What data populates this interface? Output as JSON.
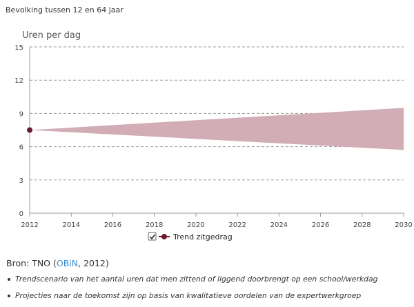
{
  "header": {
    "subtitle": "Bevolking tussen 12 en 64 jaar"
  },
  "chart_data": {
    "type": "area",
    "ylabel": "Uren per dag",
    "xlim": [
      2012,
      2030
    ],
    "ylim": [
      0,
      15
    ],
    "xticks": [
      2012,
      2014,
      2016,
      2018,
      2020,
      2022,
      2024,
      2026,
      2028,
      2030
    ],
    "yticks": [
      0,
      3,
      6,
      9,
      12,
      15
    ],
    "grid": true,
    "series": [
      {
        "name": "Trend zitgedrag",
        "start": {
          "x": 2012,
          "y": 7.5
        },
        "band": {
          "x": [
            2012,
            2030
          ],
          "lower": [
            7.5,
            5.7
          ],
          "upper": [
            7.5,
            9.5
          ]
        }
      }
    ],
    "colors": {
      "band": "#d2adb6",
      "marker": "#6a1b2e",
      "grid": "#9a9a9a",
      "axis": "#999999"
    },
    "legend": {
      "placement": "bottom-center",
      "checked": true,
      "label": "Trend zitgedrag"
    }
  },
  "footer": {
    "source_prefix": "Bron: TNO (",
    "source_link": "OBiN",
    "source_suffix": ", 2012)",
    "notes": [
      "Trendscenario van het aantal uren dat men zittend of liggend doorbrengt op een school/werkdag",
      "Projecties naar de toekomst zijn op basis van kwalitatieve oordelen van de expertwerkgroep"
    ]
  }
}
